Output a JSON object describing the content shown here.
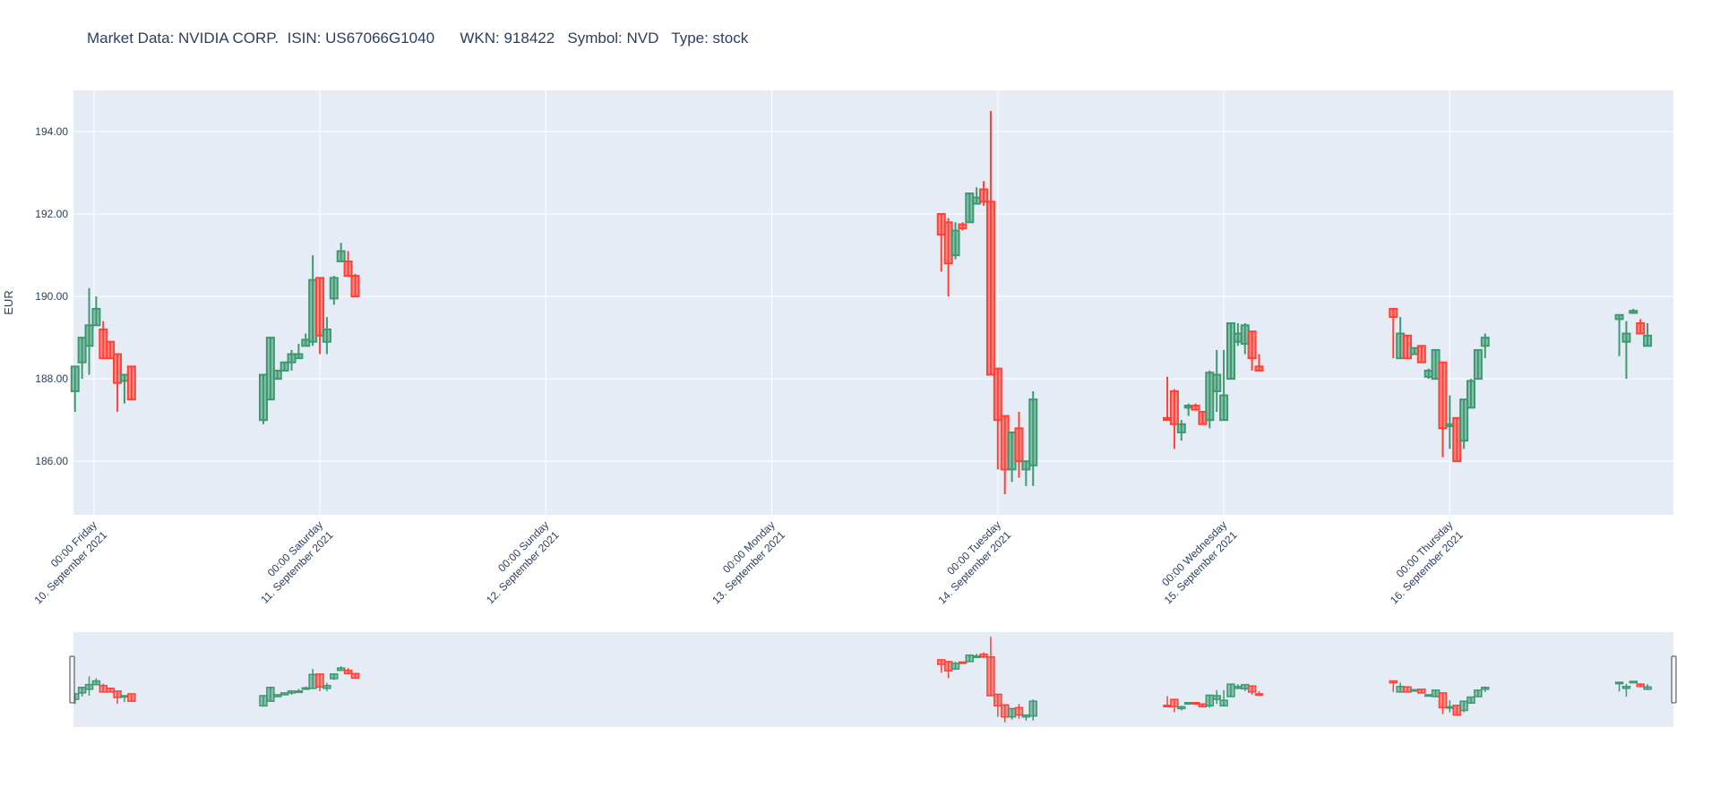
{
  "chart_data": {
    "type": "candlestick",
    "title": "Market Data: NVIDIA CORP.  ISIN: US67066G1040      WKN: 918422   Symbol: NVD   Type: stock",
    "ylabel": "EUR",
    "ylim": [
      184.7,
      195.0
    ],
    "yticks": [
      "186.00",
      "188.00",
      "190.00",
      "192.00",
      "194.00"
    ],
    "yticks_values": [
      186,
      188,
      190,
      192,
      194
    ],
    "x_start": "2021-09-09T21:50",
    "x_end": "2021-09-16T23:45",
    "x_ticks": [
      {
        "t": "2021-09-10T00:00",
        "line1": "00:00 Friday",
        "line2": "10. September 2021"
      },
      {
        "t": "2021-09-11T00:00",
        "line1": "00:00 Saturday",
        "line2": "11. September 2021"
      },
      {
        "t": "2021-09-12T00:00",
        "line1": "00:00 Sunday",
        "line2": "12. September 2021"
      },
      {
        "t": "2021-09-13T00:00",
        "line1": "00:00 Monday",
        "line2": "13. September 2021"
      },
      {
        "t": "2021-09-14T00:00",
        "line1": "00:00 Tuesday",
        "line2": "14. September 2021"
      },
      {
        "t": "2021-09-15T00:00",
        "line1": "00:00 Wednesday",
        "line2": "15. September 2021"
      },
      {
        "t": "2021-09-16T00:00",
        "line1": "00:00 Thursday",
        "line2": "16. September 2021"
      }
    ],
    "increasing_color": "#3d9970",
    "decreasing_color": "#ff4136",
    "grid": true,
    "rangeslider": true,
    "candles": [
      {
        "t": "2021-09-09T22:00",
        "o": 187.7,
        "h": 188.3,
        "l": 187.2,
        "c": 188.3
      },
      {
        "t": "2021-09-09T22:45",
        "o": 188.4,
        "h": 189.0,
        "l": 188.0,
        "c": 189.0
      },
      {
        "t": "2021-09-09T23:30",
        "o": 188.8,
        "h": 190.2,
        "l": 188.1,
        "c": 189.3
      },
      {
        "t": "2021-09-10T00:15",
        "o": 189.3,
        "h": 190.0,
        "l": 189.3,
        "c": 189.7
      },
      {
        "t": "2021-09-10T01:00",
        "o": 189.2,
        "h": 189.4,
        "l": 188.5,
        "c": 188.5
      },
      {
        "t": "2021-09-10T01:45",
        "o": 188.9,
        "h": 188.9,
        "l": 188.5,
        "c": 188.5
      },
      {
        "t": "2021-09-10T02:30",
        "o": 188.6,
        "h": 188.6,
        "l": 187.2,
        "c": 187.9
      },
      {
        "t": "2021-09-10T03:15",
        "o": 187.95,
        "h": 188.1,
        "l": 187.4,
        "c": 188.1
      },
      {
        "t": "2021-09-10T04:00",
        "o": 188.3,
        "h": 188.3,
        "l": 187.5,
        "c": 187.5
      },
      {
        "t": "2021-09-10T18:00",
        "o": 187.0,
        "h": 188.1,
        "l": 186.9,
        "c": 188.1
      },
      {
        "t": "2021-09-10T18:45",
        "o": 187.5,
        "h": 189.0,
        "l": 187.5,
        "c": 189.0
      },
      {
        "t": "2021-09-10T19:30",
        "o": 188.0,
        "h": 188.2,
        "l": 188.0,
        "c": 188.2
      },
      {
        "t": "2021-09-10T20:15",
        "o": 188.2,
        "h": 188.4,
        "l": 188.2,
        "c": 188.4
      },
      {
        "t": "2021-09-10T21:00",
        "o": 188.4,
        "h": 188.7,
        "l": 188.2,
        "c": 188.6
      },
      {
        "t": "2021-09-10T21:45",
        "o": 188.5,
        "h": 188.85,
        "l": 188.5,
        "c": 188.6
      },
      {
        "t": "2021-09-10T22:30",
        "o": 188.8,
        "h": 189.1,
        "l": 188.8,
        "c": 188.95
      },
      {
        "t": "2021-09-10T23:15",
        "o": 188.9,
        "h": 191.0,
        "l": 188.8,
        "c": 190.4
      },
      {
        "t": "2021-09-11T00:00",
        "o": 190.45,
        "h": 190.45,
        "l": 188.6,
        "c": 189.05
      },
      {
        "t": "2021-09-11T00:45",
        "o": 188.9,
        "h": 189.5,
        "l": 188.6,
        "c": 189.2
      },
      {
        "t": "2021-09-11T01:30",
        "o": 189.95,
        "h": 190.5,
        "l": 189.8,
        "c": 190.45
      },
      {
        "t": "2021-09-11T02:15",
        "o": 190.85,
        "h": 191.3,
        "l": 190.85,
        "c": 191.1
      },
      {
        "t": "2021-09-11T03:00",
        "o": 190.85,
        "h": 191.1,
        "l": 190.5,
        "c": 190.5
      },
      {
        "t": "2021-09-11T03:45",
        "o": 190.5,
        "h": 190.55,
        "l": 190.0,
        "c": 190.0
      },
      {
        "t": "2021-09-13T18:00",
        "o": 192.0,
        "h": 192.0,
        "l": 190.6,
        "c": 191.5
      },
      {
        "t": "2021-09-13T18:45",
        "o": 191.8,
        "h": 191.9,
        "l": 190.0,
        "c": 190.8
      },
      {
        "t": "2021-09-13T19:30",
        "o": 191.0,
        "h": 191.8,
        "l": 190.9,
        "c": 191.6
      },
      {
        "t": "2021-09-13T20:15",
        "o": 191.75,
        "h": 191.8,
        "l": 191.6,
        "c": 191.65
      },
      {
        "t": "2021-09-13T21:00",
        "o": 191.8,
        "h": 192.5,
        "l": 191.8,
        "c": 192.5
      },
      {
        "t": "2021-09-13T21:45",
        "o": 192.25,
        "h": 192.65,
        "l": 192.25,
        "c": 192.4
      },
      {
        "t": "2021-09-13T22:30",
        "o": 192.6,
        "h": 192.8,
        "l": 192.2,
        "c": 192.3
      },
      {
        "t": "2021-09-13T23:15",
        "o": 192.3,
        "h": 194.5,
        "l": 188.1,
        "c": 188.1
      },
      {
        "t": "2021-09-14T00:00",
        "o": 188.25,
        "h": 188.25,
        "l": 185.8,
        "c": 187.0
      },
      {
        "t": "2021-09-14T00:45",
        "o": 187.1,
        "h": 187.1,
        "l": 185.2,
        "c": 185.8
      },
      {
        "t": "2021-09-14T01:30",
        "o": 185.8,
        "h": 186.7,
        "l": 185.5,
        "c": 186.7
      },
      {
        "t": "2021-09-14T02:15",
        "o": 186.8,
        "h": 187.2,
        "l": 185.6,
        "c": 186.0
      },
      {
        "t": "2021-09-14T03:00",
        "o": 185.8,
        "h": 186.0,
        "l": 185.4,
        "c": 186.0
      },
      {
        "t": "2021-09-14T03:45",
        "o": 185.9,
        "h": 187.7,
        "l": 185.4,
        "c": 187.5
      },
      {
        "t": "2021-09-14T18:00",
        "o": 187.05,
        "h": 188.05,
        "l": 187.0,
        "c": 187.0
      },
      {
        "t": "2021-09-14T18:45",
        "o": 187.7,
        "h": 187.75,
        "l": 186.3,
        "c": 186.9
      },
      {
        "t": "2021-09-14T19:30",
        "o": 186.7,
        "h": 187.0,
        "l": 186.5,
        "c": 186.9
      },
      {
        "t": "2021-09-14T20:15",
        "o": 187.3,
        "h": 187.4,
        "l": 187.1,
        "c": 187.35
      },
      {
        "t": "2021-09-14T21:00",
        "o": 187.35,
        "h": 187.4,
        "l": 187.25,
        "c": 187.25
      },
      {
        "t": "2021-09-14T21:45",
        "o": 187.2,
        "h": 187.2,
        "l": 186.9,
        "c": 186.9
      },
      {
        "t": "2021-09-14T22:30",
        "o": 187.0,
        "h": 188.2,
        "l": 186.8,
        "c": 188.15
      },
      {
        "t": "2021-09-14T23:15",
        "o": 187.7,
        "h": 188.7,
        "l": 187.2,
        "c": 188.1
      },
      {
        "t": "2021-09-15T00:00",
        "o": 187.0,
        "h": 188.7,
        "l": 187.0,
        "c": 187.6
      },
      {
        "t": "2021-09-15T00:45",
        "o": 188.0,
        "h": 189.35,
        "l": 188.0,
        "c": 189.35
      },
      {
        "t": "2021-09-15T01:30",
        "o": 188.9,
        "h": 189.35,
        "l": 188.8,
        "c": 189.1
      },
      {
        "t": "2021-09-15T02:15",
        "o": 188.85,
        "h": 189.35,
        "l": 188.6,
        "c": 189.3
      },
      {
        "t": "2021-09-15T03:00",
        "o": 189.15,
        "h": 189.15,
        "l": 188.2,
        "c": 188.5
      },
      {
        "t": "2021-09-15T03:45",
        "o": 188.3,
        "h": 188.6,
        "l": 188.2,
        "c": 188.2
      },
      {
        "t": "2021-09-15T18:00",
        "o": 189.7,
        "h": 189.7,
        "l": 188.5,
        "c": 189.5
      },
      {
        "t": "2021-09-15T18:45",
        "o": 188.5,
        "h": 189.5,
        "l": 188.5,
        "c": 189.1
      },
      {
        "t": "2021-09-15T19:30",
        "o": 189.05,
        "h": 189.05,
        "l": 188.5,
        "c": 188.5
      },
      {
        "t": "2021-09-15T20:15",
        "o": 188.6,
        "h": 188.75,
        "l": 188.6,
        "c": 188.75
      },
      {
        "t": "2021-09-15T21:00",
        "o": 188.8,
        "h": 188.8,
        "l": 188.4,
        "c": 188.4
      },
      {
        "t": "2021-09-15T21:45",
        "o": 188.05,
        "h": 188.25,
        "l": 188.0,
        "c": 188.2
      },
      {
        "t": "2021-09-15T22:30",
        "o": 188.0,
        "h": 188.7,
        "l": 188.0,
        "c": 188.7
      },
      {
        "t": "2021-09-15T23:15",
        "o": 188.4,
        "h": 188.4,
        "l": 186.1,
        "c": 186.8
      },
      {
        "t": "2021-09-16T00:00",
        "o": 186.85,
        "h": 187.6,
        "l": 186.3,
        "c": 186.9
      },
      {
        "t": "2021-09-16T00:45",
        "o": 187.05,
        "h": 187.05,
        "l": 186.0,
        "c": 186.0
      },
      {
        "t": "2021-09-16T01:30",
        "o": 186.5,
        "h": 187.5,
        "l": 186.3,
        "c": 187.5
      },
      {
        "t": "2021-09-16T02:15",
        "o": 187.3,
        "h": 188.0,
        "l": 187.3,
        "c": 187.95
      },
      {
        "t": "2021-09-16T03:00",
        "o": 188.0,
        "h": 188.7,
        "l": 188.0,
        "c": 188.7
      },
      {
        "t": "2021-09-16T03:45",
        "o": 188.8,
        "h": 189.1,
        "l": 188.5,
        "c": 189.0
      },
      {
        "t": "2021-09-16T18:00",
        "o": 189.45,
        "h": 189.55,
        "l": 188.55,
        "c": 189.55
      },
      {
        "t": "2021-09-16T18:45",
        "o": 188.9,
        "h": 189.4,
        "l": 188.0,
        "c": 189.1
      },
      {
        "t": "2021-09-16T19:30",
        "o": 189.6,
        "h": 189.7,
        "l": 189.6,
        "c": 189.65
      },
      {
        "t": "2021-09-16T20:15",
        "o": 189.35,
        "h": 189.45,
        "l": 189.1,
        "c": 189.1
      },
      {
        "t": "2021-09-16T21:00",
        "o": 188.8,
        "h": 189.35,
        "l": 188.8,
        "c": 189.05
      }
    ]
  }
}
